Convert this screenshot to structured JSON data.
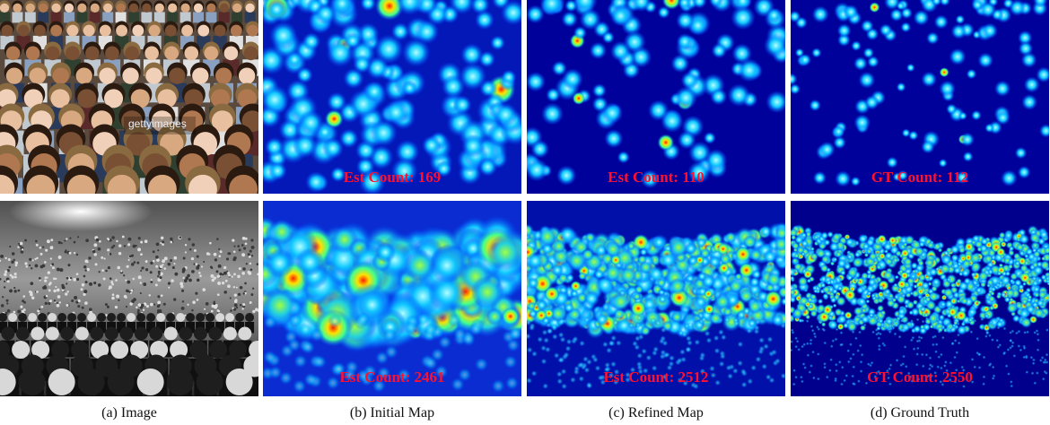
{
  "figure": {
    "watermark": "gettyimages",
    "rows": [
      {
        "labels": [
          "Est Count: 169",
          "Est Count: 110",
          "GT Count: 112"
        ]
      },
      {
        "labels": [
          "Est Count: 2461",
          "Est Count: 2512",
          "GT Count: 2550"
        ]
      }
    ],
    "captions": [
      "(a) Image",
      "(b) Initial Map",
      "(c) Refined Map",
      "(d) Ground Truth"
    ]
  }
}
